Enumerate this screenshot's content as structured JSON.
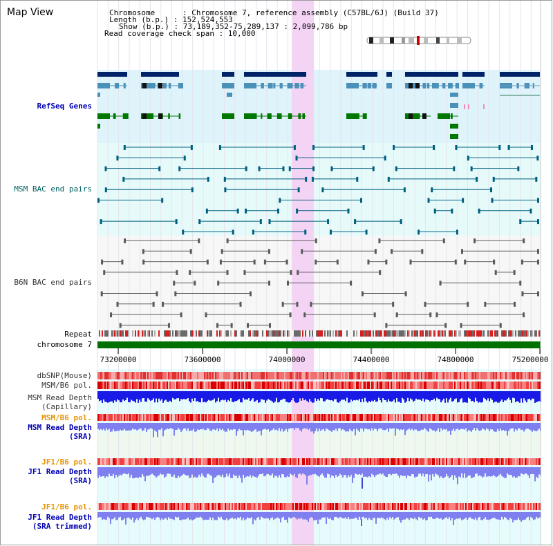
{
  "title": "Map View",
  "header": {
    "chromosome_label": "Chromosome      : Chromosome 7, reference assembly (C57BL/6J) (Build 37)",
    "length_label": "Length (b.p.) : 152,524,553",
    "show_label": "Show (b.p.) : 73,189,352-75,289,137 : 2,099,786 bp",
    "coverage_label": "Read coverage check span : 10,000"
  },
  "tracks": {
    "refseq": "RefSeq Genes",
    "msm_bac": "MSM BAC end pairs",
    "b6n_bac": "B6N BAC end pairs",
    "repeat": "Repeat",
    "chromosome": "chromosome 7",
    "dbsnp": "dbSNP(Mouse)",
    "msm_b6_pol_1": "MSM/B6 pol.",
    "msm_depth_cap_1": "MSM Read Depth",
    "msm_depth_cap_2": "(Capillary)",
    "msm_b6_pol_2": "MSM/B6 pol.",
    "msm_depth_sra_1": "MSM Read Depth",
    "msm_depth_sra_2": "(SRA)",
    "jf1_b6_pol_1": "JF1/B6 pol.",
    "jf1_depth_sra_1": "JF1 Read Depth",
    "jf1_depth_sra_2": "(SRA)",
    "jf1_b6_pol_2": "JF1/B6 pol.",
    "jf1_depth_trim_1": "JF1 Read Depth",
    "jf1_depth_trim_2": "(SRA trimmed)"
  },
  "axis": {
    "ticks": [
      "73200000",
      "73600000",
      "74000000",
      "74400000",
      "74800000",
      "75200000"
    ],
    "start": 73189352,
    "end": 75289137
  },
  "highlight_region": {
    "start": 74110000,
    "end": 74215000
  },
  "colors": {
    "gene_dark": "#002266",
    "gene_light": "#4a90b8",
    "gene_green": "#007700",
    "refseq_bg": "#dff3fb",
    "msm_bac_bg": "#e6fafa",
    "msm_bac_pair": "#005f7f",
    "b6n_pair": "#5a5a5a",
    "highlight": "#f4d4f4",
    "chromosome_bar": "#007000",
    "depth_blue": "#1a1ae6",
    "depth_light": "#7f7ff0",
    "pol_red": "#ee2222"
  }
}
